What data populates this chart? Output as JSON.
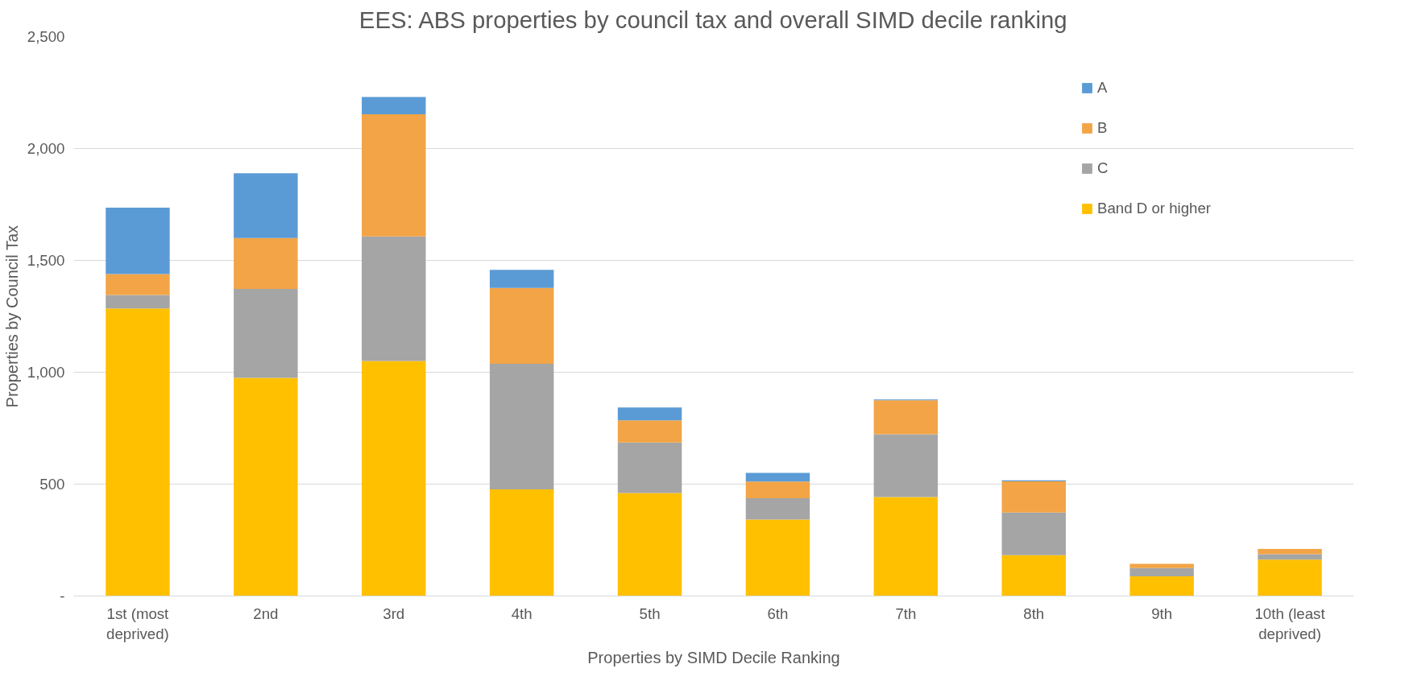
{
  "chart_data": {
    "type": "bar",
    "stacked": true,
    "title": "EES: ABS properties by council tax and overall SIMD decile ranking",
    "xlabel": "Properties by SIMD Decile Ranking",
    "ylabel": "Properties by Council Tax",
    "categories": [
      "1st (most deprived)",
      "2nd",
      "3rd",
      "4th",
      "5th",
      "6th",
      "7th",
      "8th",
      "9th",
      "10th (least deprived)"
    ],
    "series": [
      {
        "name": "Band D or higher",
        "color": "#ffc000",
        "values": [
          1285,
          975,
          1050,
          477,
          460,
          342,
          442,
          183,
          88,
          163
        ]
      },
      {
        "name": "C",
        "color": "#a5a5a5",
        "values": [
          60,
          397,
          557,
          561,
          226,
          95,
          281,
          190,
          37,
          24
        ]
      },
      {
        "name": "B",
        "color": "#f2a446",
        "values": [
          94,
          228,
          546,
          339,
          99,
          75,
          152,
          140,
          19,
          23
        ]
      },
      {
        "name": "A",
        "color": "#5b9bd5",
        "values": [
          297,
          289,
          77,
          81,
          58,
          38,
          4,
          4,
          0,
          0
        ]
      }
    ],
    "ylim": [
      0,
      2500
    ],
    "yticks": [
      {
        "value": 0,
        "label": "-"
      },
      500,
      {
        "value": 1000,
        "label": "1,000"
      },
      {
        "value": 1500,
        "label": "1,500"
      },
      {
        "value": 2000,
        "label": "2,000"
      },
      {
        "value": 2500,
        "label": "2,500"
      }
    ],
    "grid": "y",
    "legend": "right"
  }
}
